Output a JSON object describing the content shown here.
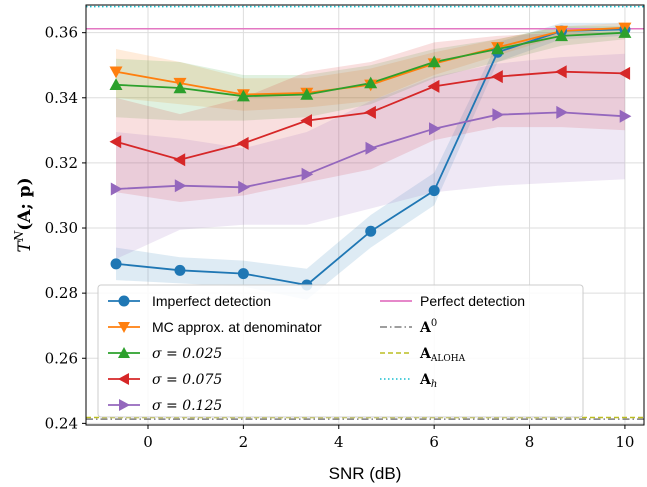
{
  "chart_data": {
    "type": "line",
    "xlabel": "SNR (dB)",
    "ylabel_main": "T",
    "ylabel_sup": "N",
    "ylabel_rest": "(A; p)",
    "xlim": [
      -1.3,
      10.4
    ],
    "ylim": [
      0.2395,
      0.3685
    ],
    "xticks": [
      0,
      2,
      4,
      6,
      8,
      10
    ],
    "yticks": [
      0.24,
      0.26,
      0.28,
      0.3,
      0.32,
      0.34,
      0.36
    ],
    "ytick_labels": [
      "0.24",
      "0.26",
      "0.28",
      "0.30",
      "0.32",
      "0.34",
      "0.36"
    ],
    "grid": true,
    "legend_position": "lower-center",
    "x": [
      -0.67,
      0.67,
      2.0,
      3.33,
      4.67,
      6.0,
      7.33,
      8.67,
      10.0
    ],
    "series": [
      {
        "name": "Imperfect detection",
        "color": "#1f77b4",
        "marker": "circle",
        "values": [
          0.289,
          0.287,
          0.286,
          0.2825,
          0.299,
          0.3115,
          0.354,
          0.3605,
          0.361
        ],
        "lower": [
          0.284,
          0.283,
          0.282,
          0.278,
          0.294,
          0.307,
          0.351,
          0.358,
          0.359
        ],
        "upper": [
          0.294,
          0.291,
          0.29,
          0.2875,
          0.304,
          0.317,
          0.357,
          0.363,
          0.363
        ]
      },
      {
        "name": "MC approx. at denominator",
        "color": "#ff7f0e",
        "marker": "triangle-down",
        "values": [
          0.348,
          0.3445,
          0.341,
          0.3415,
          0.344,
          0.3505,
          0.3555,
          0.3605,
          0.3615
        ],
        "lower": [
          0.34,
          0.338,
          0.336,
          0.337,
          0.339,
          0.347,
          0.353,
          0.359,
          0.36
        ],
        "upper": [
          0.355,
          0.351,
          0.346,
          0.346,
          0.349,
          0.354,
          0.358,
          0.362,
          0.363
        ]
      },
      {
        "name": "σ = 0.025",
        "color": "#2ca02c",
        "marker": "triangle-up",
        "values": [
          0.344,
          0.343,
          0.3405,
          0.341,
          0.3445,
          0.351,
          0.355,
          0.359,
          0.36
        ],
        "lower": [
          0.334,
          0.333,
          0.333,
          0.334,
          0.338,
          0.346,
          0.351,
          0.356,
          0.358
        ],
        "upper": [
          0.352,
          0.351,
          0.347,
          0.347,
          0.35,
          0.355,
          0.358,
          0.362,
          0.362
        ]
      },
      {
        "name": "σ = 0.075",
        "color": "#d62728",
        "marker": "triangle-left",
        "values": [
          0.3265,
          0.321,
          0.326,
          0.333,
          0.3355,
          0.3435,
          0.3465,
          0.348,
          0.3475
        ],
        "lower": [
          0.311,
          0.308,
          0.31,
          0.314,
          0.318,
          0.327,
          0.331,
          0.331,
          0.33
        ],
        "upper": [
          0.34,
          0.335,
          0.34,
          0.348,
          0.351,
          0.357,
          0.359,
          0.36,
          0.36
        ]
      },
      {
        "name": "σ = 0.125",
        "color": "#9467bd",
        "marker": "triangle-right",
        "values": [
          0.312,
          0.313,
          0.3125,
          0.3165,
          0.3245,
          0.3305,
          0.3348,
          0.3355,
          0.3343
        ],
        "lower": [
          0.2905,
          0.2995,
          0.301,
          0.301,
          0.306,
          0.311,
          0.313,
          0.314,
          0.315
        ],
        "upper": [
          0.3295,
          0.3275,
          0.3245,
          0.3295,
          0.339,
          0.3465,
          0.3505,
          0.3525,
          0.3535
        ]
      }
    ],
    "reference_lines": [
      {
        "name": "Perfect detection",
        "color": "#e377c2",
        "style": "solid",
        "y": 0.3612
      },
      {
        "name": "A0",
        "color": "#7f7f7f",
        "style": "dashdot",
        "y": 0.2413
      },
      {
        "name": "A_ALOHA",
        "color": "#bcbd22",
        "style": "dashed",
        "y": 0.2418
      },
      {
        "name": "A_h",
        "color": "#17becf",
        "style": "dotted",
        "y": 0.368
      }
    ],
    "legend_math": {
      "a0_base": "A",
      "a0_sup": "0",
      "aloha_base": "A",
      "aloha_sub": "ALOHA",
      "ah_base": "A",
      "ah_sub": "h"
    }
  }
}
